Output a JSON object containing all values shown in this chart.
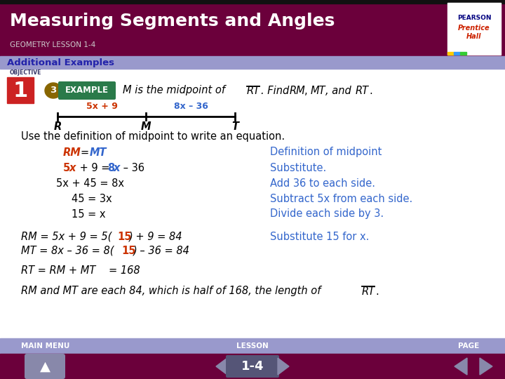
{
  "title": "Measuring Segments and Angles",
  "subtitle": "GEOMETRY LESSON 1-4",
  "additional_examples": "Additional Examples",
  "header_bg": "#6b003b",
  "header_text_color": "#ffffff",
  "subtitle_color": "#cccccc",
  "add_ex_bg": "#8888bb",
  "add_ex_text_color": "#2222aa",
  "body_bg": "#ffffff",
  "footer_bg": "#8888bb",
  "footer_dark_bg": "#6b003b",
  "objective_label": "OBJECTIVE",
  "example_num": "3",
  "example_label": "EXAMPLE",
  "example_bg": "#2a7a4a",
  "example_num_bg": "#ccaa00",
  "obj_num_bg": "#cc2222",
  "problem_text": "M is the midpoint of RT. Find RM, MT, and RT.",
  "segment_label_left": "5x + 9",
  "segment_label_right": "8x – 36",
  "point_R": "R",
  "point_M": "M",
  "point_T": "T",
  "use_def_text": "Use the definition of midpoint to write an equation.",
  "eq_lines_right": [
    "Definition of midpoint",
    "Substitute.",
    "Add 36 to each side.",
    "Subtract 5x from each side.",
    "Divide each side by 3."
  ],
  "sub_right": "Substitute 15 for x.",
  "footer_labels": [
    "MAIN MENU",
    "LESSON",
    "PAGE"
  ],
  "page_num": "1-4",
  "blue_color": "#3366cc",
  "red_color": "#cc3300",
  "dark_blue": "#333399",
  "black": "#000000"
}
